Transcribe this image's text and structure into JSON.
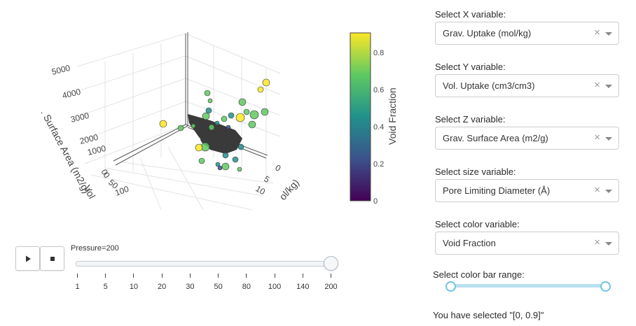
{
  "plot": {
    "x_axis_title": "ol/kg)",
    "x_ticks": [
      "0",
      "5",
      "10"
    ],
    "y_axis_title": "Vol",
    "y_ticks": [
      "0",
      "50",
      "100"
    ],
    "z_axis_title": ". Surface Area (m2/g)",
    "z_ticks": [
      "5000",
      "4000",
      "3000",
      "2000",
      "1000",
      "0"
    ],
    "colorbar_title": "Void Fraction",
    "colorbar_ticks": [
      "0.8",
      "0.6",
      "0.4",
      "0.2",
      "0"
    ],
    "colorscale": [
      "#440154",
      "#3b528b",
      "#21918c",
      "#5ec962",
      "#fde725"
    ]
  },
  "animation": {
    "play_icon": "play-icon",
    "stop_icon": "stop-icon",
    "current_label": "Pressure=200",
    "current_value": "200",
    "steps": [
      "1",
      "5",
      "10",
      "20",
      "30",
      "50",
      "80",
      "100",
      "140",
      "200"
    ]
  },
  "controls": {
    "x_label": "Select X variable:",
    "x_value": "Grav. Uptake (mol/kg)",
    "y_label": "Select Y variable:",
    "y_value": "Vol. Uptake (cm3/cm3)",
    "z_label": "Select Z variable:",
    "z_value": "Grav. Surface Area (m2/g)",
    "size_label": "Select size variable:",
    "size_value": "Pore Limiting Diameter (Å)",
    "color_label": "Select color variable:",
    "color_value": "Void Fraction",
    "clear_glyph": "×",
    "range_label": "Select color bar range:",
    "range_min": 0,
    "range_max": 0.9,
    "selected_text": "You have selected \"[0, 0.9]\""
  }
}
